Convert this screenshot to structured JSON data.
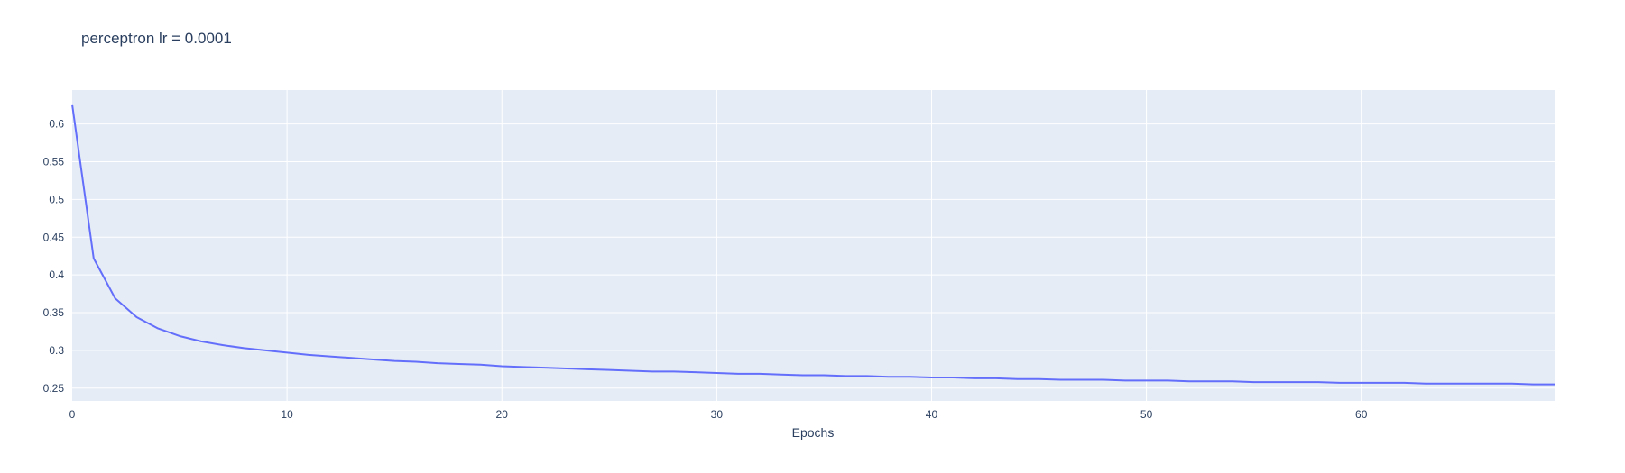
{
  "chart_data": {
    "type": "line",
    "title": "perceptron lr = 0.0001",
    "xlabel": "Epochs",
    "ylabel": "",
    "xlim": [
      0,
      69
    ],
    "ylim": [
      0.233,
      0.645
    ],
    "x_ticks": [
      0,
      10,
      20,
      30,
      40,
      50,
      60
    ],
    "y_ticks": [
      0.25,
      0.3,
      0.35,
      0.4,
      0.45,
      0.5,
      0.55,
      0.6
    ],
    "y_tick_labels": [
      "0.25",
      "0.3",
      "0.35",
      "0.4",
      "0.45",
      "0.5",
      "0.55",
      "0.6"
    ],
    "grid": true,
    "legend": "none",
    "colors": {
      "line": "#636efa",
      "plot_bg": "#e5ecf6",
      "grid": "#ffffff",
      "text": "#2a3f5f"
    },
    "series": [
      {
        "x": [
          0,
          1,
          2,
          3,
          4,
          5,
          6,
          7,
          8,
          9,
          10,
          11,
          12,
          13,
          14,
          15,
          16,
          17,
          18,
          19,
          20,
          21,
          22,
          23,
          24,
          25,
          26,
          27,
          28,
          29,
          30,
          31,
          32,
          33,
          34,
          35,
          36,
          37,
          38,
          39,
          40,
          41,
          42,
          43,
          44,
          45,
          46,
          47,
          48,
          49,
          50,
          51,
          52,
          53,
          54,
          55,
          56,
          57,
          58,
          59,
          60,
          61,
          62,
          63,
          64,
          65,
          66,
          67,
          68,
          69
        ],
        "y": [
          0.626,
          0.422,
          0.369,
          0.344,
          0.329,
          0.319,
          0.312,
          0.307,
          0.303,
          0.3,
          0.297,
          0.294,
          0.292,
          0.29,
          0.288,
          0.286,
          0.285,
          0.283,
          0.282,
          0.281,
          0.279,
          0.278,
          0.277,
          0.276,
          0.275,
          0.274,
          0.273,
          0.272,
          0.272,
          0.271,
          0.27,
          0.269,
          0.269,
          0.268,
          0.267,
          0.267,
          0.266,
          0.266,
          0.265,
          0.265,
          0.264,
          0.264,
          0.263,
          0.263,
          0.262,
          0.262,
          0.261,
          0.261,
          0.261,
          0.26,
          0.26,
          0.26,
          0.259,
          0.259,
          0.259,
          0.258,
          0.258,
          0.258,
          0.258,
          0.257,
          0.257,
          0.257,
          0.257,
          0.256,
          0.256,
          0.256,
          0.256,
          0.256,
          0.255,
          0.255
        ]
      }
    ]
  }
}
